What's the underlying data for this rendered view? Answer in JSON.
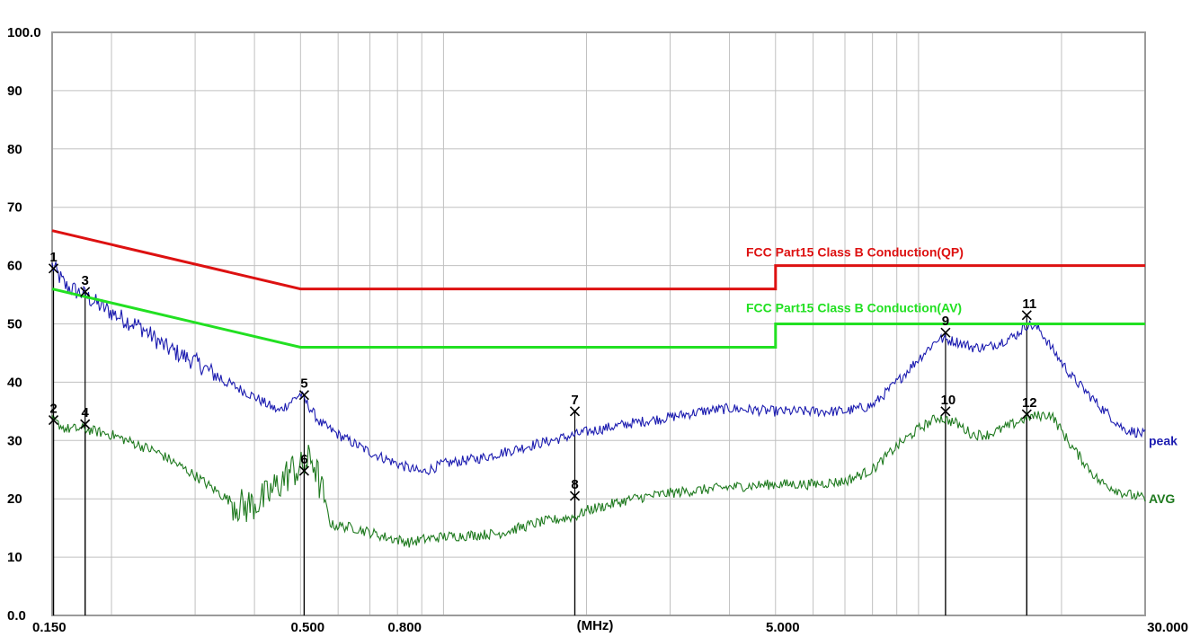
{
  "chart_data": {
    "type": "line",
    "x_scale": "log",
    "x_unit_label": "(MHz)",
    "xlim": [
      0.15,
      30.0
    ],
    "ylim": [
      0.0,
      100.0
    ],
    "grid": true,
    "x_ticks": [
      "0.150",
      "0.500",
      "0.800",
      "5.000",
      "30.000"
    ],
    "x_tick_values": [
      0.15,
      0.5,
      0.8,
      5.0,
      30.0
    ],
    "y_ticks": [
      "0.0",
      "10",
      "20",
      "30",
      "40",
      "50",
      "60",
      "70",
      "80",
      "90",
      "100.0"
    ],
    "y_tick_values": [
      0,
      10,
      20,
      30,
      40,
      50,
      60,
      70,
      80,
      90,
      100
    ],
    "colors": {
      "qp_limit": "#dd1111",
      "avg_limit": "#22e022",
      "peak": "#1c1cb0",
      "avg": "#1f7a1f",
      "grid": "#c0c0c0",
      "frame": "#9a9a9a"
    },
    "limits": [
      {
        "name": "FCC Part15 Class B Conduction(QP)",
        "points": [
          [
            0.15,
            66
          ],
          [
            0.5,
            56
          ],
          [
            5.0,
            56
          ],
          [
            5.0,
            60
          ],
          [
            30.0,
            60
          ]
        ]
      },
      {
        "name": "FCC Part15 Class B Conduction(AV)",
        "points": [
          [
            0.15,
            56
          ],
          [
            0.5,
            46
          ],
          [
            5.0,
            46
          ],
          [
            5.0,
            50
          ],
          [
            30.0,
            50
          ]
        ]
      }
    ],
    "series": [
      {
        "name": "peak",
        "key": "peak",
        "points": [
          [
            0.15,
            60
          ],
          [
            0.16,
            56.5
          ],
          [
            0.175,
            55
          ],
          [
            0.19,
            53
          ],
          [
            0.21,
            51
          ],
          [
            0.23,
            49.5
          ],
          [
            0.26,
            46
          ],
          [
            0.3,
            43.5
          ],
          [
            0.35,
            40
          ],
          [
            0.4,
            37.5
          ],
          [
            0.45,
            35
          ],
          [
            0.5,
            38
          ],
          [
            0.55,
            33
          ],
          [
            0.6,
            31
          ],
          [
            0.7,
            28
          ],
          [
            0.8,
            26
          ],
          [
            0.9,
            24.5
          ],
          [
            1.0,
            26
          ],
          [
            1.2,
            27
          ],
          [
            1.5,
            29
          ],
          [
            1.9,
            31
          ],
          [
            2.0,
            31.5
          ],
          [
            2.5,
            33
          ],
          [
            3.0,
            34
          ],
          [
            3.5,
            35
          ],
          [
            4.0,
            35.5
          ],
          [
            5.0,
            35
          ],
          [
            6.0,
            35
          ],
          [
            7.0,
            35
          ],
          [
            8.0,
            36
          ],
          [
            9.0,
            40
          ],
          [
            10.0,
            44
          ],
          [
            11.0,
            47.5
          ],
          [
            12.0,
            47
          ],
          [
            13.0,
            46
          ],
          [
            14.0,
            46
          ],
          [
            15.0,
            47
          ],
          [
            16.0,
            48
          ],
          [
            17.0,
            50
          ],
          [
            18.0,
            49
          ],
          [
            19.0,
            46
          ],
          [
            21.0,
            41
          ],
          [
            24.0,
            36
          ],
          [
            27.0,
            32
          ],
          [
            30.0,
            31
          ]
        ]
      },
      {
        "name": "AVG",
        "key": "avg",
        "points": [
          [
            0.15,
            33.5
          ],
          [
            0.16,
            32
          ],
          [
            0.175,
            32
          ],
          [
            0.2,
            31
          ],
          [
            0.25,
            28
          ],
          [
            0.3,
            24
          ],
          [
            0.35,
            20
          ],
          [
            0.38,
            18.5
          ],
          [
            0.42,
            20
          ],
          [
            0.48,
            25
          ],
          [
            0.5,
            25
          ],
          [
            0.53,
            27
          ],
          [
            0.56,
            20
          ],
          [
            0.58,
            15.5
          ],
          [
            0.65,
            15
          ],
          [
            0.75,
            13.5
          ],
          [
            0.85,
            12.5
          ],
          [
            0.9,
            13
          ],
          [
            1.0,
            13.5
          ],
          [
            1.3,
            14
          ],
          [
            1.6,
            16
          ],
          [
            1.9,
            17
          ],
          [
            2.0,
            18
          ],
          [
            2.5,
            20
          ],
          [
            3.0,
            21
          ],
          [
            4.0,
            22
          ],
          [
            5.0,
            22.5
          ],
          [
            6.0,
            22.5
          ],
          [
            7.0,
            23
          ],
          [
            8.0,
            25
          ],
          [
            9.0,
            29
          ],
          [
            10.0,
            32
          ],
          [
            11.0,
            34
          ],
          [
            12.0,
            33
          ],
          [
            13.0,
            31
          ],
          [
            14.0,
            31
          ],
          [
            15.0,
            32
          ],
          [
            16.0,
            33
          ],
          [
            17.0,
            34
          ],
          [
            19.0,
            34.5
          ],
          [
            21.0,
            29
          ],
          [
            24.0,
            23
          ],
          [
            27.0,
            21
          ],
          [
            30.0,
            20
          ]
        ]
      }
    ],
    "markers": [
      {
        "label": "1",
        "x": 0.151,
        "y": 59.5
      },
      {
        "label": "2",
        "x": 0.151,
        "y": 33.5
      },
      {
        "label": "3",
        "x": 0.176,
        "y": 55.5
      },
      {
        "label": "4",
        "x": 0.176,
        "y": 32.8
      },
      {
        "label": "5",
        "x": 0.509,
        "y": 37.8
      },
      {
        "label": "6",
        "x": 0.509,
        "y": 24.8
      },
      {
        "label": "7",
        "x": 1.89,
        "y": 35.0
      },
      {
        "label": "8",
        "x": 1.89,
        "y": 20.5
      },
      {
        "label": "9",
        "x": 11.4,
        "y": 48.5
      },
      {
        "label": "10",
        "x": 11.4,
        "y": 35.0
      },
      {
        "label": "11",
        "x": 16.9,
        "y": 51.5
      },
      {
        "label": "12",
        "x": 16.9,
        "y": 34.5
      }
    ]
  }
}
